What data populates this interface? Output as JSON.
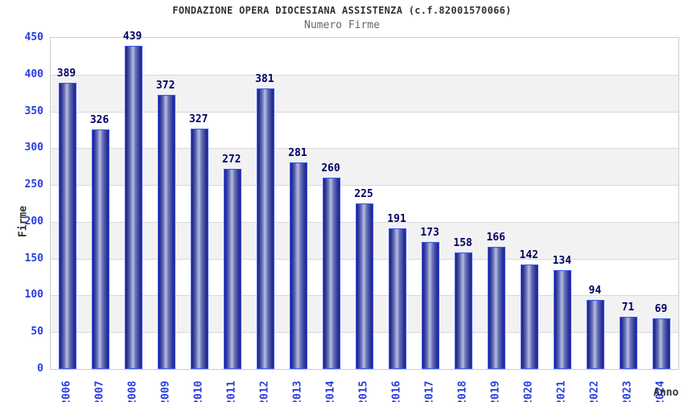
{
  "chart_data": {
    "type": "bar",
    "title": "FONDAZIONE OPERA DIOCESIANA ASSISTENZA (c.f.82001570066)",
    "subtitle": "Numero Firme",
    "xlabel": "Anno",
    "ylabel": "Firme",
    "categories": [
      "2006",
      "2007",
      "2008",
      "2009",
      "2010",
      "2011",
      "2012",
      "2013",
      "2014",
      "2015",
      "2016",
      "2017",
      "2018",
      "2019",
      "2020",
      "2021",
      "2022",
      "2023",
      "2024"
    ],
    "values": [
      389,
      326,
      439,
      372,
      327,
      272,
      381,
      281,
      260,
      225,
      191,
      173,
      158,
      166,
      142,
      134,
      94,
      71,
      69
    ],
    "ylim": [
      0,
      450
    ],
    "yticks": [
      0,
      50,
      100,
      150,
      200,
      250,
      300,
      350,
      400,
      450
    ],
    "grid": "horizontal-bands-alternating",
    "legend": "none",
    "bar_labels_shown": true,
    "colors": {
      "title": "#333333",
      "subtitle": "#666666",
      "axis_tick": "#2b3cdf",
      "value_label": "#000066",
      "axis_title": "#333333",
      "band_light": "#ffffff",
      "band_dark": "#f2f2f2",
      "gridline": "#d9d9d9",
      "plot_border": "#cccccc",
      "bar_border": "#3b55ee",
      "bar_dark": "#232b93",
      "bar_mid": "#6a74b8",
      "bar_light": "#b8bede"
    }
  }
}
